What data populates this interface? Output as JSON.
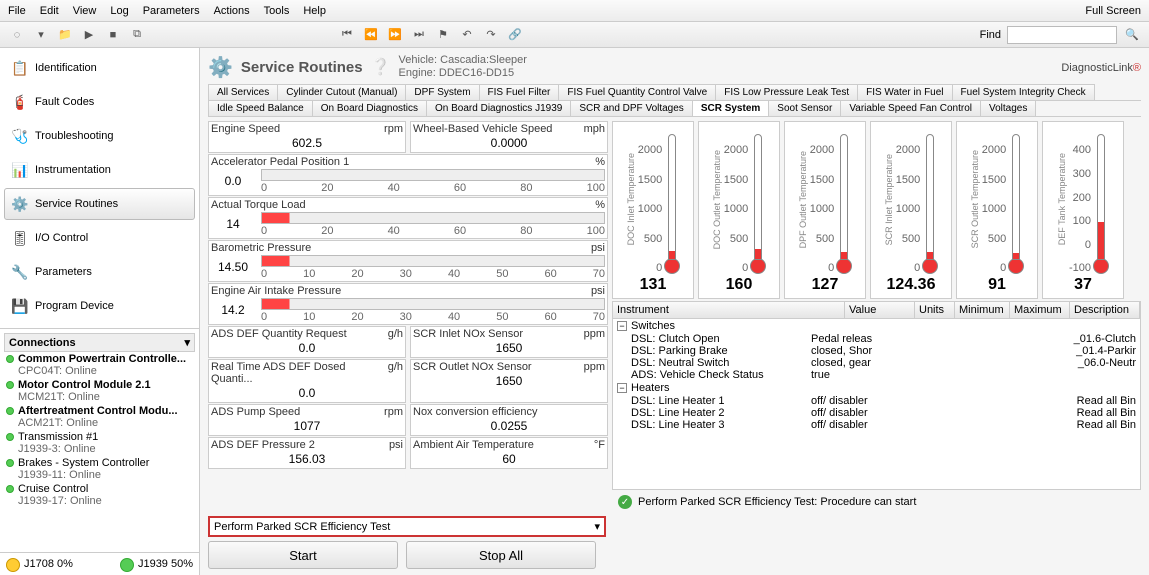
{
  "menu": [
    "File",
    "Edit",
    "View",
    "Log",
    "Parameters",
    "Actions",
    "Tools",
    "Help"
  ],
  "menu_right": "Full Screen",
  "find_label": "Find",
  "nav": [
    {
      "icon": "📋",
      "label": "Identification"
    },
    {
      "icon": "🧯",
      "label": "Fault Codes"
    },
    {
      "icon": "🩺",
      "label": "Troubleshooting"
    },
    {
      "icon": "📊",
      "label": "Instrumentation"
    },
    {
      "icon": "⚙️",
      "label": "Service Routines",
      "active": true
    },
    {
      "icon": "🎚",
      "label": "I/O Control"
    },
    {
      "icon": "🔧",
      "label": "Parameters"
    },
    {
      "icon": "💾",
      "label": "Program Device"
    }
  ],
  "connections_title": "Connections",
  "connections": [
    {
      "name": "Common Powertrain Controlle...",
      "sub": "CPC04T: Online",
      "bold": true
    },
    {
      "name": "Motor Control Module 2.1",
      "sub": "MCM21T: Online",
      "bold": true
    },
    {
      "name": "Aftertreatment Control Modu...",
      "sub": "ACM21T: Online",
      "bold": true
    },
    {
      "name": "Transmission #1",
      "sub": "J1939-3: Online"
    },
    {
      "name": "Brakes - System Controller",
      "sub": "J1939-11: Online"
    },
    {
      "name": "Cruise Control",
      "sub": "J1939-17: Online"
    }
  ],
  "status": {
    "left": "J1708 0%",
    "right": "J1939 50%"
  },
  "header": {
    "title": "Service Routines",
    "vehicle": "Vehicle: Cascadia:Sleeper",
    "engine": "Engine: DDEC16-DD15",
    "logo": "DiagnosticLink"
  },
  "tabs_row1": [
    "All Services",
    "Cylinder Cutout (Manual)",
    "DPF System",
    "FIS Fuel Filter",
    "FIS Fuel Quantity Control Valve",
    "FIS Low Pressure Leak Test",
    "FIS Water in Fuel",
    "Fuel System Integrity Check"
  ],
  "tabs_row2": [
    "Idle Speed Balance",
    "On Board Diagnostics",
    "On Board Diagnostics J1939",
    "SCR and DPF Voltages",
    "SCR System",
    "Soot Sensor",
    "Variable Speed Fan Control",
    "Voltages"
  ],
  "active_tab": "SCR System",
  "params": [
    {
      "pair": [
        {
          "name": "Engine Speed",
          "unit": "rpm",
          "value": "602.5"
        },
        {
          "name": "Wheel-Based Vehicle Speed",
          "unit": "mph",
          "value": "0.0000"
        }
      ]
    },
    {
      "name": "Accelerator Pedal Position 1",
      "unit": "%",
      "value": "0.0",
      "ticks": [
        "0",
        "20",
        "40",
        "60",
        "80",
        "100"
      ],
      "plain": true
    },
    {
      "name": "Actual Torque Load",
      "unit": "%",
      "value": "14",
      "ticks": [
        "0",
        "20",
        "40",
        "60",
        "80",
        "100"
      ]
    },
    {
      "name": "Barometric Pressure",
      "unit": "psi",
      "value": "14.50",
      "ticks": [
        "0",
        "10",
        "20",
        "30",
        "40",
        "50",
        "60",
        "70"
      ]
    },
    {
      "name": "Engine Air Intake Pressure",
      "unit": "psi",
      "value": "14.2",
      "ticks": [
        "0",
        "10",
        "20",
        "30",
        "40",
        "50",
        "60",
        "70"
      ]
    },
    {
      "pair": [
        {
          "name": "ADS DEF Quantity Request",
          "unit": "g/h",
          "value": "0.0"
        },
        {
          "name": "SCR Inlet NOx Sensor",
          "unit": "ppm",
          "value": "1650"
        }
      ]
    },
    {
      "pair": [
        {
          "name": "Real Time ADS DEF Dosed Quanti...",
          "unit": "g/h",
          "value": "0.0"
        },
        {
          "name": "SCR Outlet NOx Sensor",
          "unit": "ppm",
          "value": "1650"
        }
      ]
    },
    {
      "pair": [
        {
          "name": "ADS Pump Speed",
          "unit": "rpm",
          "value": "1077"
        },
        {
          "name": "Nox conversion efficiency",
          "unit": "",
          "value": "0.0255"
        }
      ]
    },
    {
      "pair": [
        {
          "name": "ADS DEF Pressure 2",
          "unit": "psi",
          "value": "156.03"
        },
        {
          "name": "Ambient Air Temperature",
          "unit": "°F",
          "value": "60"
        }
      ]
    }
  ],
  "gauges": [
    {
      "label": "DOC Inlet Temperature",
      "value": "131",
      "max": 2000,
      "ticks": [
        "2000",
        "1500",
        "1000",
        "500",
        "0"
      ],
      "fill_pct": 7
    },
    {
      "label": "DOC Outlet Temperature",
      "value": "160",
      "max": 2000,
      "ticks": [
        "2000",
        "1500",
        "1000",
        "500",
        "0"
      ],
      "fill_pct": 8
    },
    {
      "label": "DPF Outlet Temperature",
      "value": "127",
      "max": 2000,
      "ticks": [
        "2000",
        "1500",
        "1000",
        "500",
        "0"
      ],
      "fill_pct": 6
    },
    {
      "label": "SCR Inlet Temperature",
      "value": "124.36",
      "max": 2000,
      "ticks": [
        "2000",
        "1500",
        "1000",
        "500",
        "0"
      ],
      "fill_pct": 6
    },
    {
      "label": "SCR Outlet Temperature",
      "value": "91",
      "max": 2000,
      "ticks": [
        "2000",
        "1500",
        "1000",
        "500",
        "0"
      ],
      "fill_pct": 5
    },
    {
      "label": "DEF Tank Temperature",
      "value": "37",
      "max": 400,
      "ticks": [
        "400",
        "300",
        "200",
        "100",
        "0",
        "-100"
      ],
      "fill_pct": 30
    }
  ],
  "instr_cols": [
    "Instrument",
    "Value",
    "Units",
    "Minimum",
    "Maximum",
    "Description"
  ],
  "instr_groups": [
    {
      "name": "Switches",
      "rows": [
        {
          "c1": "DSL: Clutch Open",
          "c2": "Pedal releas",
          "c6": "_01.6-Clutch"
        },
        {
          "c1": "DSL: Parking Brake",
          "c2": "closed, Shor",
          "c6": "_01.4-Parkir"
        },
        {
          "c1": "DSL: Neutral Switch",
          "c2": "closed, gear",
          "c6": "_06.0-Neutr"
        },
        {
          "c1": "ADS: Vehicle Check Status",
          "c2": "true",
          "c6": ""
        }
      ]
    },
    {
      "name": "Heaters",
      "rows": [
        {
          "c1": "DSL: Line Heater 1",
          "c2": "off/ disabler",
          "c6": "Read all Bin"
        },
        {
          "c1": "DSL: Line Heater 2",
          "c2": "off/ disabler",
          "c6": "Read all Bin"
        },
        {
          "c1": "DSL: Line Heater 3",
          "c2": "off/ disabler",
          "c6": "Read all Bin"
        }
      ]
    }
  ],
  "dropdown": "Perform Parked SCR Efficiency Test",
  "status_msg": "Perform Parked SCR Efficiency Test: Procedure can start",
  "buttons": {
    "start": "Start",
    "stop": "Stop All"
  },
  "colors": {
    "accent": "#c33",
    "thermo": "#e33",
    "active_green": "#4a4"
  }
}
